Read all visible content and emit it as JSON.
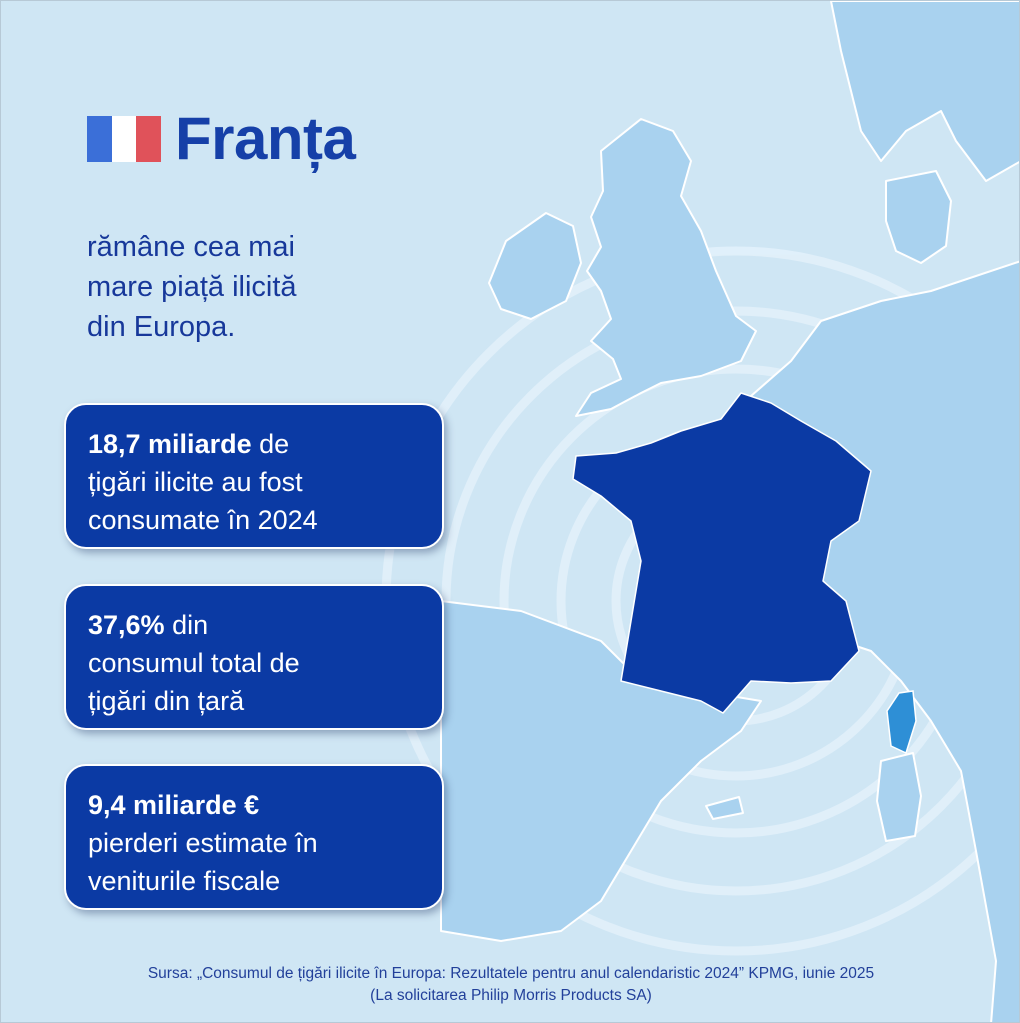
{
  "header": {
    "title": "Franța",
    "flag_colors": [
      "#3b6fd8",
      "#ffffff",
      "#e0525a"
    ]
  },
  "lead": {
    "line1": "rămâne cea mai",
    "line2": "mare piață ilicită",
    "line3": "din Europa."
  },
  "cards": [
    {
      "bold": "18,7 miliarde",
      "rest1": " de",
      "rest2": "țigări ilicite au fost",
      "rest3": "consumate în 2024"
    },
    {
      "bold": "37,6%",
      "rest1": " din",
      "rest2": "consumul total de",
      "rest3": "țigări din țară"
    },
    {
      "bold": "9,4 miliarde €",
      "rest1": "",
      "rest2": "pierderi estimate în",
      "rest3": "veniturile fiscale"
    }
  ],
  "source": {
    "line1": "Sursa: „Consumul de țigări ilicite în Europa: Rezultatele pentru anul calendaristic 2024” KPMG, iunie 2025",
    "line2": "(La solicitarea Philip Morris Products SA)"
  },
  "colors": {
    "background": "#cfe6f4",
    "land": "#a9d2ef",
    "france": "#0b3aa4",
    "corsica": "#2e8fd6",
    "accent": "#1640a8"
  }
}
